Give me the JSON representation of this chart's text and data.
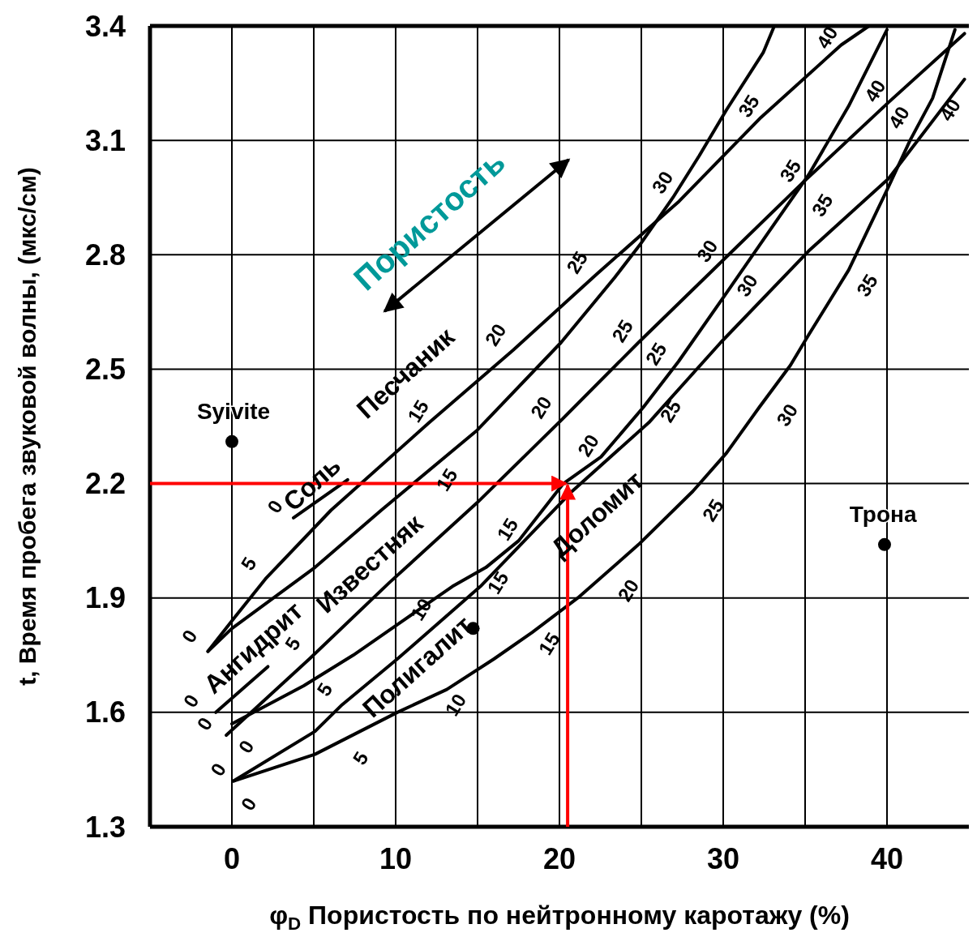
{
  "chart_data": {
    "type": "line",
    "xlabel": "φ$_{D}$   Пористость по нейтронному каротажу (%)",
    "ylabel": "t, Время пробега звуковой волны, (мкс/см)",
    "xlim": [
      -5,
      45
    ],
    "xticks": [
      0,
      {
        "value": 5,
        "label": null
      },
      10,
      {
        "value": 15,
        "label": null
      },
      20,
      {
        "value": 25,
        "label": null
      },
      30,
      {
        "value": 35,
        "label": null
      },
      40
    ],
    "ylim": [
      1.3,
      3.4
    ],
    "yticks": [
      1.3,
      1.6,
      1.9,
      2.2,
      2.5,
      2.8,
      3.1,
      3.4
    ],
    "grid": true,
    "series": [
      {
        "type": "line",
        "color": "#000000",
        "x": [
          -1.46,
          0,
          2.05,
          6.05,
          12.05,
          17.17,
          22.3,
          27.3,
          32.3,
          37.2,
          38.9
        ],
        "values": [
          1.76,
          1.84,
          1.95,
          2.13,
          2.36,
          2.55,
          2.75,
          2.94,
          3.16,
          3.35,
          3.4
        ]
      },
      {
        "type": "line",
        "color": "#000000",
        "x": [
          -1.46,
          0,
          5.07,
          9.12,
          14.98,
          20.1,
          23.37,
          24.98,
          26.93,
          28.54,
          30.2,
          32.44,
          33.12
        ],
        "values": [
          1.76,
          1.82,
          1.98,
          2.13,
          2.34,
          2.57,
          2.74,
          2.83,
          2.95,
          3.06,
          3.18,
          3.33,
          3.4
        ]
      },
      {
        "type": "line",
        "color": "#000000",
        "x": [
          -0.34,
          4.73,
          9.61,
          14.98,
          20.2,
          24.83,
          29.85,
          34.88,
          40.1,
          44.73
        ],
        "values": [
          1.54,
          1.74,
          1.94,
          2.15,
          2.37,
          2.57,
          2.78,
          2.99,
          3.2,
          3.38
        ]
      },
      {
        "type": "line",
        "color": "#000000",
        "x": [
          0,
          4.39,
          7.41,
          10.1,
          13.46,
          15.51,
          17.51,
          20.24,
          22.54,
          25.12,
          27.27,
          30.2,
          32.78,
          35.22,
          37.66,
          40
        ],
        "values": [
          1.57,
          1.67,
          1.75,
          1.83,
          1.93,
          1.98,
          2.05,
          2.2,
          2.27,
          2.4,
          2.52,
          2.7,
          2.86,
          3.01,
          3.19,
          3.39
        ]
      },
      {
        "type": "line",
        "color": "#000000",
        "x": [
          0.1,
          5.07,
          6.73,
          10.1,
          15.17,
          20.78,
          25.46,
          29.85,
          35.22,
          40.1,
          44.73
        ],
        "values": [
          1.42,
          1.55,
          1.62,
          1.74,
          1.93,
          2.18,
          2.36,
          2.57,
          2.81,
          3.0,
          3.26
        ]
      },
      {
        "type": "line",
        "color": "#000000",
        "x": [
          0.1,
          5.07,
          10.1,
          13.12,
          16.0,
          18.34,
          21.12,
          24.83,
          28.15,
          30.2,
          32.2,
          34.1,
          35.22,
          37.66,
          40.0,
          41.41,
          42.78,
          44.15
        ],
        "values": [
          1.42,
          1.49,
          1.6,
          1.66,
          1.74,
          1.81,
          1.9,
          2.04,
          2.18,
          2.28,
          2.4,
          2.51,
          2.59,
          2.76,
          2.97,
          3.1,
          3.21,
          3.39
        ]
      },
      {
        "type": "line",
        "color": "#000000",
        "x": [
          3.76,
          7.07
        ],
        "values": [
          2.11,
          2.21
        ]
      },
      {
        "type": "line",
        "color": "#000000",
        "x": [
          -0.98,
          2.2
        ],
        "values": [
          1.6,
          1.72
        ]
      },
      {
        "type": "scatter",
        "marker": "circle",
        "color": "#000000",
        "x": [
          0,
          39.85,
          14.73
        ],
        "values": [
          2.31,
          2.04,
          1.82
        ]
      }
    ],
    "ref_lines": [
      {
        "axis": "y",
        "value": 2.2,
        "color": "#ff0000"
      },
      {
        "axis": "x",
        "value": 20.5,
        "color": "#ff0000"
      }
    ],
    "annotations": [
      "Syivite",
      "Трона",
      "Пористость",
      "Песчаник",
      "Известняк",
      "Доломит",
      "Ангидрит",
      "Соль",
      "Полигалит",
      "0",
      "5",
      "15",
      "20",
      "25",
      "30",
      "35",
      "40",
      "0",
      "15",
      "20",
      "25",
      "30",
      "35",
      "40",
      "0",
      "0",
      "5",
      "10",
      "15",
      "20",
      "25",
      "30",
      "35",
      "40",
      "0",
      "5",
      "15",
      "25",
      "0",
      "0",
      "5",
      "10",
      "15",
      "20",
      "25",
      "30",
      "35",
      "40"
    ]
  }
}
